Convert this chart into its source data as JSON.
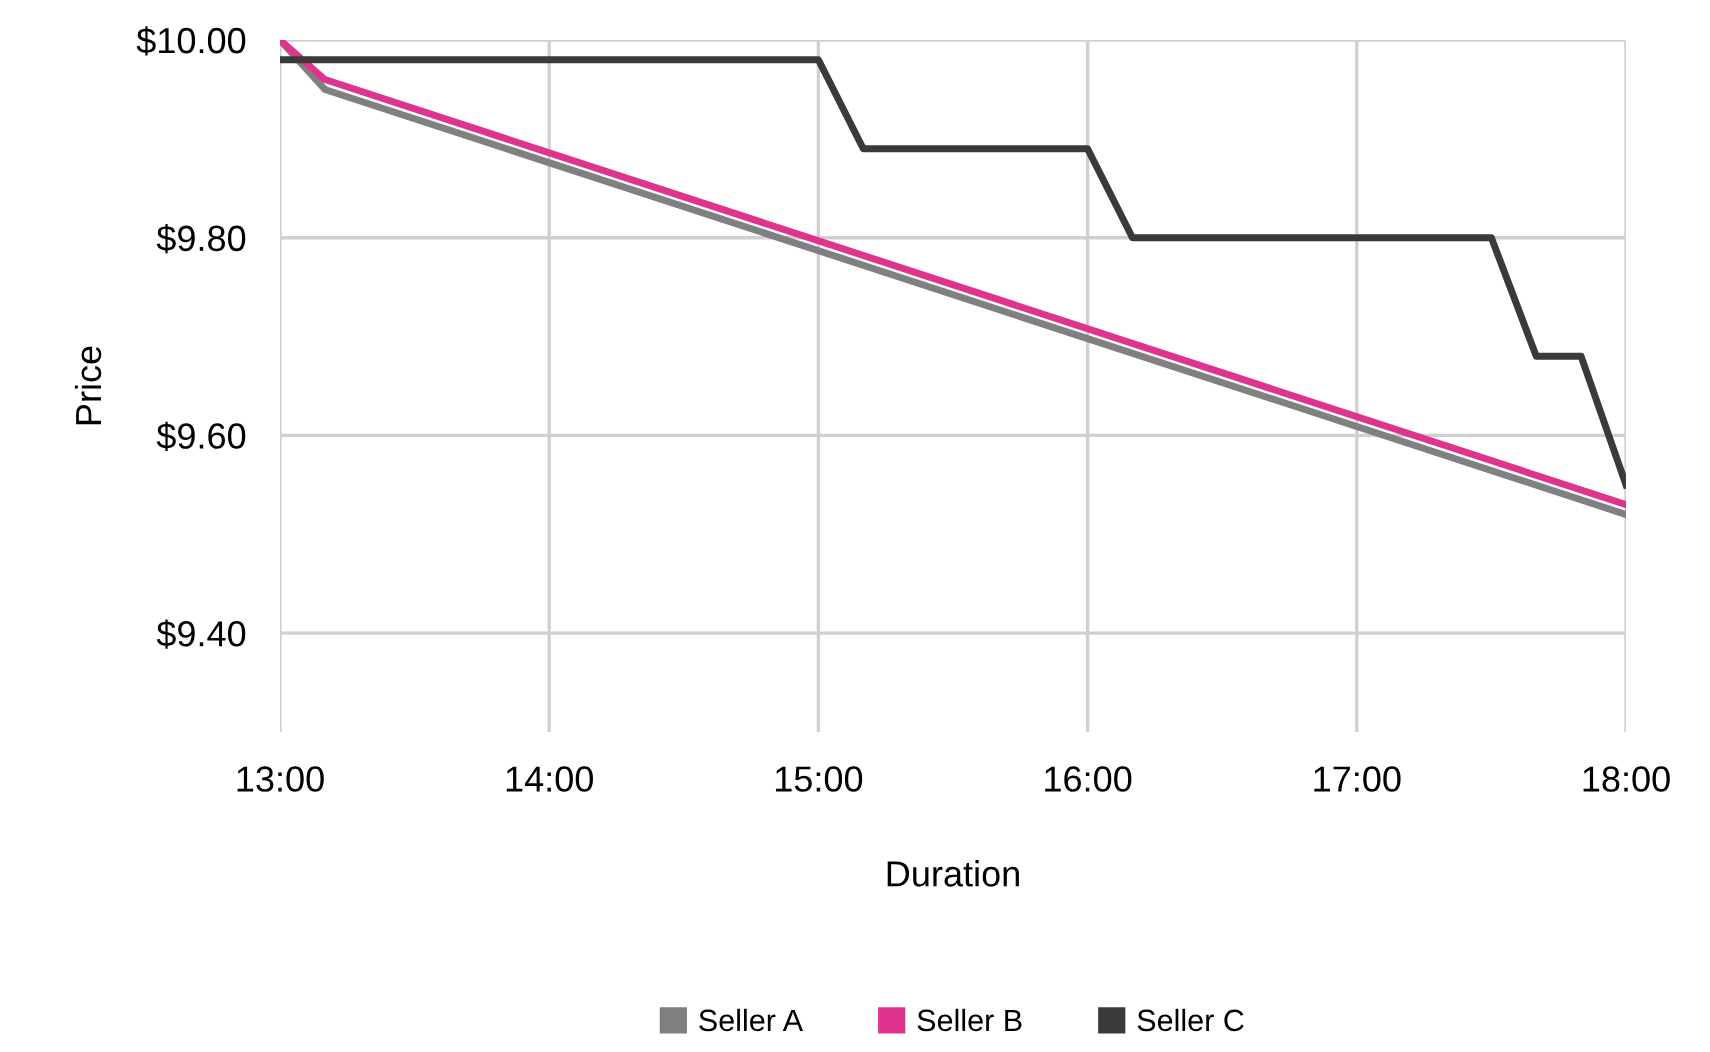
{
  "chart_data": {
    "type": "line",
    "xlabel": "Duration",
    "ylabel": "Price",
    "xlim": [
      13,
      18
    ],
    "xticks": [
      {
        "value": 13,
        "label": "13:00"
      },
      {
        "value": 14,
        "label": "14:00"
      },
      {
        "value": 15,
        "label": "15:00"
      },
      {
        "value": 16,
        "label": "16:00"
      },
      {
        "value": 17,
        "label": "17:00"
      },
      {
        "value": 18,
        "label": "18:00"
      }
    ],
    "ylim": [
      9.3,
      10.0
    ],
    "yticks": [
      {
        "value": 9.4,
        "label": "$9.40"
      },
      {
        "value": 9.6,
        "label": "$9.60"
      },
      {
        "value": 9.8,
        "label": "$9.80"
      },
      {
        "value": 10.0,
        "label": "$10.00"
      }
    ],
    "grid": true,
    "legend": "bottom",
    "marker": "none",
    "line_style": "solid",
    "series": [
      {
        "name": "Seller A",
        "color": "#808080",
        "x": [
          13,
          13.1667,
          18
        ],
        "values": [
          10.0,
          9.95,
          9.52
        ]
      },
      {
        "name": "Seller B",
        "color": "#e0338e",
        "x": [
          13,
          13.1667,
          18
        ],
        "values": [
          10.0,
          9.96,
          9.53
        ]
      },
      {
        "name": "Seller C",
        "color": "#3a3a3a",
        "x": [
          13,
          15,
          15.1667,
          16,
          16.1667,
          17.5,
          17.6667,
          17.8333,
          18
        ],
        "values": [
          9.98,
          9.98,
          9.89,
          9.89,
          9.8,
          9.8,
          9.68,
          9.68,
          9.55
        ]
      }
    ]
  }
}
